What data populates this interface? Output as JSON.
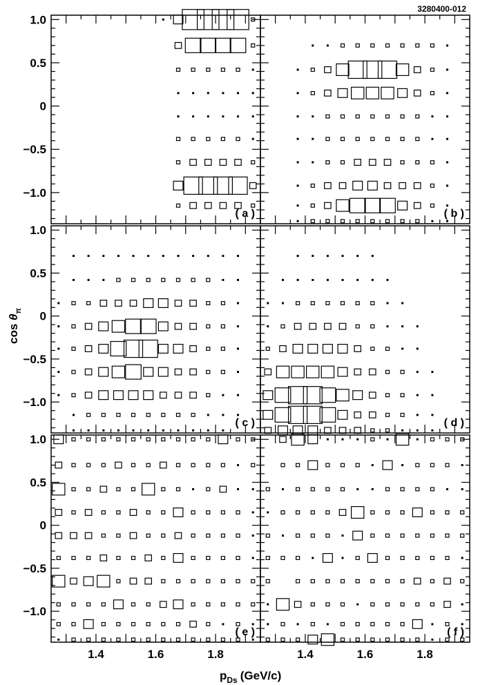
{
  "figure_id": "3280400-012",
  "chart_data": {
    "type": "box-histogram",
    "xlabel_main": "p",
    "xlabel_sub": "Ds",
    "xlabel_unit": "(GeV/c)",
    "ylabel_main": "cos ",
    "ylabel_theta": "θ",
    "ylabel_sub": "π",
    "x_range": [
      1.25,
      1.95
    ],
    "y_range": [
      -1.36,
      1.05
    ],
    "x_ticks": [
      1.4,
      1.6,
      1.8
    ],
    "x_tick_labels": [
      "1.4",
      "1.6",
      "1.8"
    ],
    "y_ticks": [
      1.0,
      0.5,
      0.0,
      -0.5,
      -1.0
    ],
    "y_tick_labels": [
      "1.0",
      "0.5",
      "0",
      "−0.5",
      "−1.0"
    ],
    "columns_x": [
      1.275,
      1.325,
      1.375,
      1.425,
      1.475,
      1.525,
      1.575,
      1.625,
      1.675,
      1.725,
      1.775,
      1.825,
      1.875,
      1.925
    ],
    "rows_y": [
      1.0,
      0.7,
      0.42,
      0.15,
      -0.12,
      -0.38,
      -0.65,
      -0.92,
      -1.15,
      -1.33
    ],
    "panels": [
      {
        "label": "( a )",
        "grid": [
          [
            0,
            0,
            0,
            0,
            0,
            0,
            0,
            1,
            4,
            8,
            8,
            8,
            8,
            2
          ],
          [
            0,
            0,
            0,
            0,
            0,
            0,
            0,
            0,
            3,
            6,
            6,
            6,
            6,
            2
          ],
          [
            0,
            0,
            0,
            0,
            0,
            0,
            0,
            0,
            2,
            2,
            2,
            2,
            2,
            1
          ],
          [
            0,
            0,
            0,
            0,
            0,
            0,
            0,
            0,
            1,
            1,
            1,
            1,
            1,
            1
          ],
          [
            0,
            0,
            0,
            0,
            0,
            0,
            0,
            0,
            1,
            1,
            1,
            1,
            1,
            1
          ],
          [
            0,
            0,
            0,
            0,
            0,
            0,
            0,
            0,
            2,
            2,
            2,
            2,
            2,
            1
          ],
          [
            0,
            0,
            0,
            0,
            0,
            0,
            0,
            0,
            2,
            3,
            3,
            3,
            3,
            2
          ],
          [
            0,
            0,
            0,
            0,
            0,
            0,
            0,
            0,
            4,
            7,
            7,
            7,
            7,
            3
          ],
          [
            0,
            0,
            0,
            0,
            0,
            0,
            0,
            0,
            2,
            3,
            3,
            3,
            3,
            2
          ],
          [
            0,
            0,
            0,
            0,
            0,
            0,
            0,
            0,
            0,
            0,
            0,
            0,
            0,
            0
          ]
        ]
      },
      {
        "label": "( b )",
        "grid": [
          [
            0,
            0,
            0,
            0,
            0,
            0,
            0,
            0,
            0,
            0,
            0,
            0,
            0,
            0
          ],
          [
            0,
            0,
            0,
            1,
            1,
            2,
            2,
            2,
            2,
            2,
            2,
            2,
            1,
            0
          ],
          [
            0,
            0,
            1,
            2,
            3,
            5,
            7,
            7,
            7,
            5,
            3,
            2,
            1,
            0
          ],
          [
            0,
            0,
            1,
            2,
            3,
            4,
            5,
            5,
            5,
            4,
            3,
            2,
            1,
            0
          ],
          [
            0,
            0,
            1,
            1,
            2,
            2,
            2,
            2,
            2,
            2,
            2,
            1,
            1,
            0
          ],
          [
            0,
            0,
            1,
            1,
            2,
            2,
            2,
            2,
            2,
            2,
            2,
            1,
            1,
            0
          ],
          [
            0,
            0,
            1,
            1,
            2,
            2,
            3,
            3,
            3,
            2,
            2,
            2,
            1,
            0
          ],
          [
            0,
            0,
            1,
            2,
            3,
            3,
            4,
            4,
            3,
            3,
            3,
            2,
            1,
            0
          ],
          [
            0,
            0,
            1,
            2,
            3,
            5,
            6,
            6,
            6,
            4,
            3,
            2,
            1,
            0
          ],
          [
            0,
            0,
            1,
            2,
            2,
            2,
            2,
            2,
            2,
            2,
            2,
            1,
            1,
            0
          ]
        ]
      },
      {
        "label": "( c )",
        "grid": [
          [
            0,
            0,
            0,
            0,
            0,
            0,
            0,
            0,
            0,
            0,
            0,
            0,
            0,
            0
          ],
          [
            0,
            1,
            1,
            1,
            1,
            1,
            1,
            1,
            1,
            1,
            1,
            1,
            1,
            0
          ],
          [
            0,
            1,
            1,
            1,
            2,
            2,
            2,
            2,
            2,
            2,
            2,
            1,
            1,
            0
          ],
          [
            1,
            2,
            2,
            3,
            3,
            3,
            4,
            4,
            3,
            3,
            2,
            2,
            1,
            0
          ],
          [
            1,
            2,
            3,
            4,
            5,
            6,
            6,
            4,
            3,
            3,
            2,
            2,
            1,
            0
          ],
          [
            1,
            2,
            3,
            4,
            6,
            7,
            7,
            4,
            4,
            3,
            2,
            2,
            1,
            0
          ],
          [
            1,
            2,
            3,
            4,
            5,
            6,
            4,
            4,
            3,
            3,
            2,
            2,
            1,
            0
          ],
          [
            1,
            2,
            3,
            4,
            4,
            4,
            4,
            3,
            3,
            3,
            2,
            1,
            1,
            0
          ],
          [
            0,
            1,
            2,
            2,
            2,
            2,
            2,
            2,
            2,
            2,
            1,
            1,
            1,
            0
          ],
          [
            0,
            1,
            1,
            1,
            1,
            1,
            1,
            1,
            1,
            1,
            1,
            1,
            0,
            0
          ]
        ]
      },
      {
        "label": "( d )",
        "grid": [
          [
            0,
            0,
            0,
            0,
            0,
            0,
            0,
            0,
            0,
            0,
            0,
            0,
            0,
            0
          ],
          [
            0,
            0,
            1,
            1,
            1,
            1,
            1,
            1,
            0,
            0,
            0,
            0,
            0,
            0
          ],
          [
            0,
            1,
            1,
            1,
            1,
            1,
            1,
            1,
            1,
            0,
            0,
            0,
            0,
            0
          ],
          [
            1,
            1,
            2,
            2,
            2,
            2,
            2,
            2,
            1,
            1,
            0,
            0,
            0,
            0
          ],
          [
            1,
            2,
            3,
            3,
            3,
            3,
            2,
            2,
            1,
            1,
            1,
            0,
            0,
            0
          ],
          [
            2,
            3,
            4,
            4,
            4,
            4,
            3,
            2,
            2,
            1,
            1,
            0,
            0,
            0
          ],
          [
            3,
            5,
            5,
            5,
            5,
            4,
            3,
            3,
            2,
            2,
            1,
            1,
            0,
            0
          ],
          [
            4,
            6,
            7,
            7,
            6,
            5,
            4,
            3,
            2,
            2,
            1,
            1,
            0,
            0
          ],
          [
            4,
            6,
            7,
            7,
            6,
            4,
            3,
            3,
            2,
            2,
            1,
            1,
            0,
            0
          ],
          [
            3,
            4,
            4,
            4,
            3,
            3,
            3,
            2,
            2,
            1,
            1,
            1,
            0,
            0
          ]
        ]
      },
      {
        "label": "( e )",
        "grid": [
          [
            4,
            2,
            2,
            2,
            2,
            2,
            2,
            2,
            2,
            2,
            2,
            4,
            2,
            2
          ],
          [
            3,
            2,
            2,
            2,
            3,
            2,
            2,
            3,
            2,
            2,
            2,
            2,
            1,
            2
          ],
          [
            5,
            2,
            2,
            3,
            2,
            2,
            5,
            2,
            2,
            1,
            2,
            3,
            1,
            1
          ],
          [
            3,
            2,
            3,
            2,
            2,
            3,
            2,
            2,
            4,
            2,
            2,
            2,
            2,
            1
          ],
          [
            3,
            3,
            3,
            2,
            2,
            3,
            2,
            2,
            3,
            2,
            2,
            2,
            2,
            1
          ],
          [
            2,
            2,
            2,
            3,
            2,
            2,
            3,
            2,
            4,
            2,
            2,
            2,
            2,
            1
          ],
          [
            5,
            3,
            4,
            5,
            2,
            3,
            3,
            2,
            2,
            2,
            2,
            2,
            2,
            2
          ],
          [
            2,
            2,
            2,
            2,
            4,
            2,
            2,
            3,
            4,
            2,
            2,
            2,
            2,
            2
          ],
          [
            2,
            2,
            4,
            2,
            2,
            2,
            2,
            2,
            2,
            3,
            2,
            1,
            2,
            1
          ],
          [
            1,
            2,
            2,
            2,
            2,
            2,
            2,
            2,
            2,
            2,
            2,
            2,
            2,
            1
          ]
        ]
      },
      {
        "label": "( f )",
        "grid": [
          [
            0,
            3,
            5,
            4,
            1,
            1,
            1,
            2,
            1,
            5,
            1,
            2,
            2,
            2
          ],
          [
            0,
            2,
            2,
            4,
            2,
            2,
            2,
            1,
            4,
            1,
            2,
            2,
            2,
            1
          ],
          [
            2,
            1,
            2,
            2,
            2,
            2,
            1,
            1,
            2,
            2,
            2,
            2,
            1,
            1
          ],
          [
            1,
            2,
            2,
            2,
            2,
            3,
            5,
            2,
            2,
            2,
            4,
            2,
            2,
            2
          ],
          [
            2,
            1,
            2,
            2,
            2,
            1,
            4,
            2,
            2,
            2,
            2,
            2,
            2,
            2
          ],
          [
            2,
            2,
            2,
            1,
            4,
            1,
            2,
            4,
            2,
            2,
            2,
            2,
            2,
            1
          ],
          [
            2,
            0,
            2,
            2,
            2,
            2,
            2,
            2,
            2,
            2,
            3,
            2,
            3,
            2
          ],
          [
            1,
            5,
            3,
            2,
            2,
            2,
            1,
            2,
            2,
            2,
            2,
            2,
            3,
            1
          ],
          [
            1,
            2,
            1,
            2,
            1,
            2,
            2,
            2,
            2,
            2,
            4,
            1,
            2,
            1
          ],
          [
            2,
            2,
            2,
            4,
            5,
            2,
            2,
            2,
            2,
            2,
            2,
            1,
            2,
            2
          ]
        ]
      }
    ]
  }
}
